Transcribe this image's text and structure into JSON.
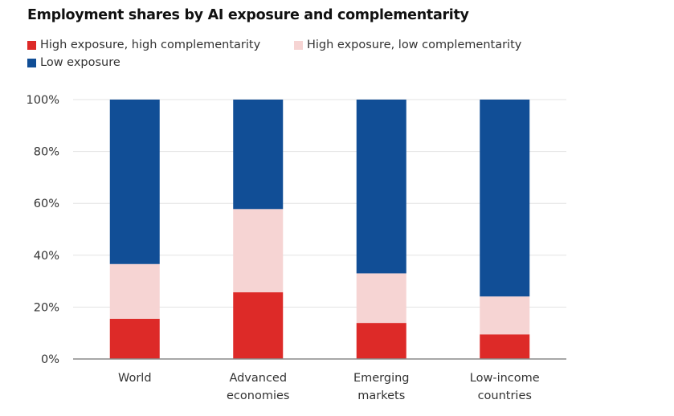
{
  "chart_data": {
    "type": "bar",
    "stacked": true,
    "title": "Employment shares by AI exposure and complementarity",
    "xlabel": "",
    "ylabel": "",
    "ylim": [
      0,
      100
    ],
    "yticks": [
      "0%",
      "20%",
      "40%",
      "60%",
      "80%",
      "100%"
    ],
    "ytick_values": [
      0,
      20,
      40,
      60,
      80,
      100
    ],
    "grid": true,
    "legend_position": "top-left",
    "categories": [
      [
        "World"
      ],
      [
        "Advanced",
        "economies"
      ],
      [
        "Emerging",
        "markets"
      ],
      [
        "Low-income",
        "countries"
      ]
    ],
    "category_names": [
      "World",
      "Advanced economies",
      "Emerging markets",
      "Low-income countries"
    ],
    "series": [
      {
        "name": "High exposure, high complementarity",
        "color": "#dd2a28",
        "values": [
          15.5,
          25.7,
          13.9,
          9.5
        ]
      },
      {
        "name": "High exposure, low complementarity",
        "color": "#f6d4d3",
        "values": [
          21.1,
          32.1,
          19.1,
          14.6
        ]
      },
      {
        "name": "Low exposure",
        "color": "#114e96",
        "values": [
          63.4,
          42.2,
          67.0,
          75.9
        ]
      }
    ]
  }
}
